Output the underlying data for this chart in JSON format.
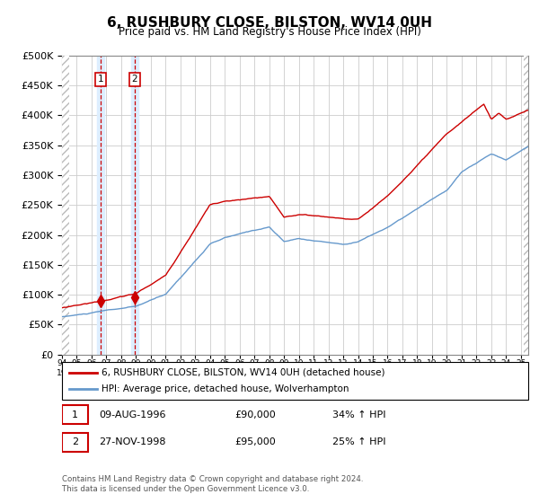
{
  "title": "6, RUSHBURY CLOSE, BILSTON, WV14 0UH",
  "subtitle": "Price paid vs. HM Land Registry's House Price Index (HPI)",
  "ylim": [
    0,
    500000
  ],
  "yticks": [
    0,
    50000,
    100000,
    150000,
    200000,
    250000,
    300000,
    350000,
    400000,
    450000,
    500000
  ],
  "sale1_date_x": 1996.6,
  "sale1_price": 90000,
  "sale2_date_x": 1998.9,
  "sale2_price": 95000,
  "legend1": "6, RUSHBURY CLOSE, BILSTON, WV14 0UH (detached house)",
  "legend2": "HPI: Average price, detached house, Wolverhampton",
  "table_row1_num": "1",
  "table_row1_date": "09-AUG-1996",
  "table_row1_price": "£90,000",
  "table_row1_hpi": "34% ↑ HPI",
  "table_row2_num": "2",
  "table_row2_date": "27-NOV-1998",
  "table_row2_price": "£95,000",
  "table_row2_hpi": "25% ↑ HPI",
  "footer": "Contains HM Land Registry data © Crown copyright and database right 2024.\nThis data is licensed under the Open Government Licence v3.0.",
  "bg_color": "#ffffff",
  "grid_color": "#cccccc",
  "red_line_color": "#cc0000",
  "blue_line_color": "#6699cc",
  "sale_marker_color": "#cc0000",
  "shade_color": "#ddeeff",
  "dashed_line_color": "#cc0000",
  "xmin": 1994,
  "xmax": 2025.5
}
